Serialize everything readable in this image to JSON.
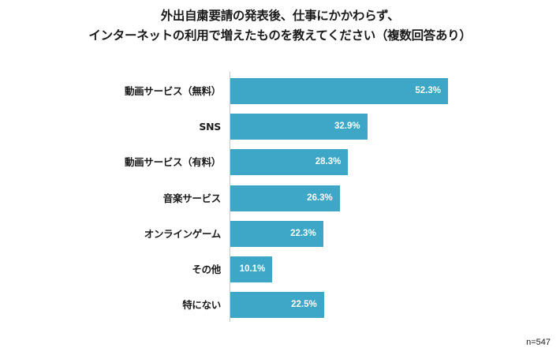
{
  "title_line1": "外出自粛要請の発表後、仕事にかかわらず、",
  "title_line2": "インターネットの利用で増えたものを教えてください（複数回答あり）",
  "sample_size": "n=547",
  "colors": {
    "bar": "#3ea6c6",
    "axis": "#c8c8c8",
    "label_text": "#1a1a1a",
    "value_text": "#ffffff"
  },
  "chart_data": {
    "type": "bar",
    "orientation": "horizontal",
    "title": "外出自粛要請の発表後、仕事にかかわらず、インターネットの利用で増えたものを教えてください（複数回答あり）",
    "xlabel": "",
    "ylabel": "",
    "unit": "%",
    "grid": false,
    "legend": null,
    "note": "n=547",
    "categories": [
      "動画サービス（無料）",
      "SNS",
      "動画サービス（有料）",
      "音楽サービス",
      "オンラインゲーム",
      "その他",
      "特にない"
    ],
    "values": [
      52.3,
      32.9,
      28.3,
      26.3,
      22.3,
      10.1,
      22.5
    ],
    "value_labels": [
      "52.3%",
      "32.9%",
      "28.3%",
      "26.3%",
      "22.3%",
      "10.1%",
      "22.5%"
    ],
    "xlim": [
      0,
      60
    ]
  }
}
